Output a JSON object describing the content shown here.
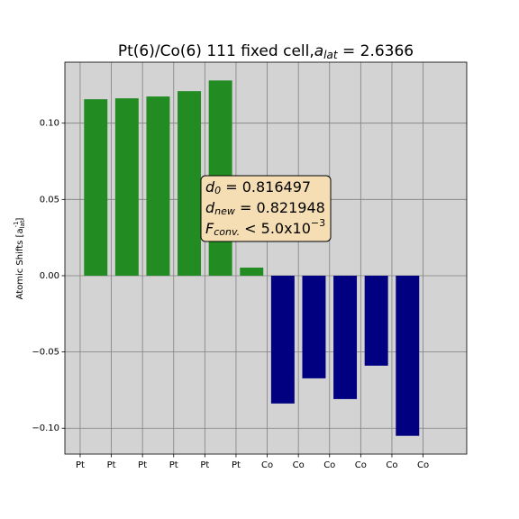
{
  "chart_data": {
    "type": "bar",
    "title": [
      "Pt(6)/Co(6) 111 fixed cell,",
      "a",
      "lat",
      " = 2.6366"
    ],
    "y_label": [
      "Atomic Shifts [a",
      "lat",
      "-1",
      "]"
    ],
    "annotation": [
      [
        "d",
        "0",
        " = 0.816497"
      ],
      [
        "d",
        "new",
        " = 0.821948"
      ],
      [
        "F",
        "conv.",
        " < 5.0x10",
        "−3"
      ]
    ],
    "series": [
      {
        "color": "#228b22",
        "x": [
          0.5,
          1.5,
          2.5,
          3.5,
          4.5,
          5.5
        ],
        "values": [
          0.1157,
          0.1163,
          0.1175,
          0.121,
          0.128,
          0.0053
        ]
      },
      {
        "color": "#000080",
        "x": [
          6.5,
          7.5,
          8.5,
          9.5,
          10.5
        ],
        "values": [
          -0.0838,
          -0.0673,
          -0.0809,
          -0.059,
          -0.105
        ]
      }
    ],
    "bar_width": 0.75,
    "xlim": [
      -0.49,
      12.4
    ],
    "xticks": [
      {
        "value": 0,
        "label": "Pt"
      },
      {
        "value": 1,
        "label": "Pt"
      },
      {
        "value": 2,
        "label": "Pt"
      },
      {
        "value": 3,
        "label": "Pt"
      },
      {
        "value": 4,
        "label": "Pt"
      },
      {
        "value": 5,
        "label": "Pt"
      },
      {
        "value": 6,
        "label": "Co"
      },
      {
        "value": 7,
        "label": "Co"
      },
      {
        "value": 8,
        "label": "Co"
      },
      {
        "value": 9,
        "label": "Co"
      },
      {
        "value": 10,
        "label": "Co"
      },
      {
        "value": 11,
        "label": "Co"
      }
    ],
    "ylim": [
      -0.117,
      0.14
    ],
    "yticks": [
      {
        "value": -0.1,
        "label": "−0.10"
      },
      {
        "value": -0.05,
        "label": "−0.05"
      },
      {
        "value": 0,
        "label": "0.00"
      },
      {
        "value": 0.05,
        "label": "0.05"
      },
      {
        "value": 0.1,
        "label": "0.10"
      }
    ],
    "grid": true,
    "background": "#d3d3d3",
    "annotation_color": "#f5deb3"
  }
}
